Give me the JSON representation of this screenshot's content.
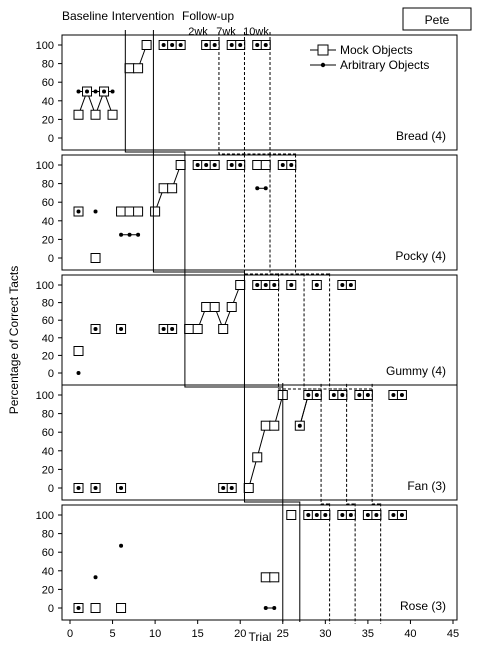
{
  "participant": "Pete",
  "phase_labels": {
    "baseline": "Baseline",
    "intervention": "Intervention",
    "followup": "Follow-up"
  },
  "followup_labels": [
    "2wk",
    "7wk",
    "10wk"
  ],
  "legend": {
    "mock": "Mock Objects",
    "arbitrary": "Arbitrary Objects"
  },
  "ylabel": "Percentage of Correct Tacts",
  "xlabel": "Trial",
  "chart_data": {
    "type": "scatter",
    "title": "",
    "xlabel": "Trial",
    "ylabel": "Percentage of Correct Tacts",
    "xlim": [
      0,
      45
    ],
    "ylim": [
      0,
      100
    ],
    "x_ticks": [
      0,
      5,
      10,
      15,
      20,
      25,
      30,
      35,
      40,
      45
    ],
    "y_ticks": [
      0,
      20,
      40,
      60,
      80,
      100
    ],
    "panels": [
      {
        "name": "Bread (4)",
        "phase_change_after_trial": [
          6,
          9
        ],
        "followup_sessions": [
          "2wk",
          "7wk",
          "10wk"
        ],
        "series": [
          {
            "name": "Mock Objects",
            "points": [
              [
                1,
                25
              ],
              [
                2,
                50
              ],
              [
                3,
                25
              ],
              [
                4,
                50
              ],
              [
                5,
                25
              ],
              [
                7,
                75
              ],
              [
                8,
                75
              ],
              [
                9,
                100
              ],
              [
                11,
                100
              ],
              [
                12,
                100
              ],
              [
                13,
                100
              ],
              [
                16,
                100
              ],
              [
                17,
                100
              ],
              [
                19,
                100
              ],
              [
                20,
                100
              ],
              [
                22,
                100
              ],
              [
                23,
                100
              ]
            ],
            "connected_groups": [
              [
                1,
                5
              ],
              [
                7,
                9
              ]
            ]
          },
          {
            "name": "Arbitrary Objects",
            "points": [
              [
                1,
                50
              ],
              [
                2,
                50
              ],
              [
                3,
                50
              ],
              [
                4,
                50
              ],
              [
                5,
                50
              ],
              [
                11,
                100
              ],
              [
                12,
                100
              ],
              [
                13,
                100
              ],
              [
                16,
                100
              ],
              [
                17,
                100
              ],
              [
                19,
                100
              ],
              [
                20,
                100
              ],
              [
                22,
                100
              ],
              [
                23,
                100
              ]
            ],
            "connected_groups": [
              [
                1,
                5
              ]
            ]
          }
        ]
      },
      {
        "name": "Pocky (4)",
        "phase_change_after_trial": [
          10,
          14
        ],
        "followup_sessions": [
          "2wk",
          "7wk",
          "10wk"
        ],
        "series": [
          {
            "name": "Mock Objects",
            "points": [
              [
                1,
                50
              ],
              [
                3,
                0
              ],
              [
                6,
                50
              ],
              [
                7,
                50
              ],
              [
                8,
                50
              ],
              [
                10,
                50
              ],
              [
                11,
                75
              ],
              [
                12,
                75
              ],
              [
                13,
                100
              ],
              [
                15,
                100
              ],
              [
                16,
                100
              ],
              [
                17,
                100
              ],
              [
                19,
                100
              ],
              [
                20,
                100
              ],
              [
                22,
                100
              ],
              [
                23,
                100
              ],
              [
                25,
                100
              ],
              [
                26,
                100
              ]
            ],
            "connected_groups": [
              [
                10,
                13
              ],
              [
                22,
                23
              ]
            ]
          },
          {
            "name": "Arbitrary Objects",
            "points": [
              [
                1,
                50
              ],
              [
                3,
                50
              ],
              [
                6,
                25
              ],
              [
                7,
                25
              ],
              [
                8,
                25
              ],
              [
                15,
                100
              ],
              [
                16,
                100
              ],
              [
                17,
                100
              ],
              [
                19,
                100
              ],
              [
                20,
                100
              ],
              [
                22,
                75
              ],
              [
                23,
                75
              ],
              [
                25,
                100
              ],
              [
                26,
                100
              ]
            ],
            "connected_groups": [
              [
                6,
                8
              ],
              [
                22,
                23
              ]
            ]
          }
        ]
      },
      {
        "name": "Gummy (4)",
        "phase_change_after_trial": [
          13,
          20
        ],
        "followup_sessions": [
          "2wk",
          "7wk",
          "10wk"
        ],
        "series": [
          {
            "name": "Mock Objects",
            "points": [
              [
                1,
                25
              ],
              [
                3,
                50
              ],
              [
                6,
                50
              ],
              [
                11,
                50
              ],
              [
                12,
                50
              ],
              [
                14,
                50
              ],
              [
                15,
                50
              ],
              [
                16,
                75
              ],
              [
                17,
                75
              ],
              [
                18,
                50
              ],
              [
                19,
                75
              ],
              [
                20,
                100
              ],
              [
                22,
                100
              ],
              [
                23,
                100
              ],
              [
                24,
                100
              ],
              [
                26,
                100
              ],
              [
                29,
                100
              ],
              [
                32,
                100
              ],
              [
                33,
                100
              ]
            ],
            "connected_groups": [
              [
                14,
                20
              ]
            ]
          },
          {
            "name": "Arbitrary Objects",
            "points": [
              [
                1,
                0
              ],
              [
                3,
                50
              ],
              [
                6,
                50
              ],
              [
                11,
                50
              ],
              [
                12,
                50
              ],
              [
                22,
                100
              ],
              [
                23,
                100
              ],
              [
                24,
                100
              ],
              [
                26,
                100
              ],
              [
                29,
                100
              ],
              [
                32,
                100
              ],
              [
                33,
                100
              ]
            ],
            "connected_groups": []
          }
        ]
      },
      {
        "name": "Fan (3)",
        "phase_change_after_trial": [
          20,
          26
        ],
        "followup_sessions": [
          "2wk",
          "7wk",
          "10wk"
        ],
        "series": [
          {
            "name": "Mock Objects",
            "points": [
              [
                1,
                0
              ],
              [
                3,
                0
              ],
              [
                6,
                0
              ],
              [
                18,
                0
              ],
              [
                19,
                0
              ],
              [
                21,
                0
              ],
              [
                22,
                33
              ],
              [
                23,
                67
              ],
              [
                24,
                67
              ],
              [
                25,
                100
              ],
              [
                27,
                67
              ],
              [
                28,
                100
              ],
              [
                29,
                100
              ],
              [
                31,
                100
              ],
              [
                32,
                100
              ],
              [
                34,
                100
              ],
              [
                35,
                100
              ],
              [
                38,
                100
              ],
              [
                39,
                100
              ]
            ],
            "connected_groups": [
              [
                21,
                25
              ],
              [
                27,
                29
              ]
            ]
          },
          {
            "name": "Arbitrary Objects",
            "points": [
              [
                1,
                0
              ],
              [
                3,
                0
              ],
              [
                6,
                0
              ],
              [
                18,
                0
              ],
              [
                19,
                0
              ],
              [
                27,
                67
              ],
              [
                28,
                100
              ],
              [
                29,
                100
              ],
              [
                31,
                100
              ],
              [
                32,
                100
              ],
              [
                34,
                100
              ],
              [
                35,
                100
              ],
              [
                38,
                100
              ],
              [
                39,
                100
              ]
            ],
            "connected_groups": [
              [
                27,
                29
              ]
            ]
          }
        ]
      },
      {
        "name": "Rose (3)",
        "phase_change_after_trial": [
          25,
          27
        ],
        "followup_sessions": [
          "2wk",
          "7wk",
          "10wk"
        ],
        "series": [
          {
            "name": "Mock Objects",
            "points": [
              [
                1,
                0
              ],
              [
                3,
                0
              ],
              [
                6,
                0
              ],
              [
                23,
                33
              ],
              [
                24,
                33
              ],
              [
                26,
                100
              ],
              [
                28,
                100
              ],
              [
                29,
                100
              ],
              [
                30,
                100
              ],
              [
                32,
                100
              ],
              [
                33,
                100
              ],
              [
                35,
                100
              ],
              [
                36,
                100
              ],
              [
                38,
                100
              ],
              [
                39,
                100
              ]
            ],
            "connected_groups": [
              [
                23,
                24
              ]
            ]
          },
          {
            "name": "Arbitrary Objects",
            "points": [
              [
                1,
                0
              ],
              [
                3,
                33
              ],
              [
                6,
                67
              ],
              [
                23,
                0
              ],
              [
                24,
                0
              ],
              [
                28,
                100
              ],
              [
                29,
                100
              ],
              [
                30,
                100
              ],
              [
                32,
                100
              ],
              [
                33,
                100
              ],
              [
                35,
                100
              ],
              [
                36,
                100
              ],
              [
                38,
                100
              ],
              [
                39,
                100
              ]
            ],
            "connected_groups": [
              [
                23,
                24
              ]
            ]
          }
        ]
      }
    ]
  }
}
